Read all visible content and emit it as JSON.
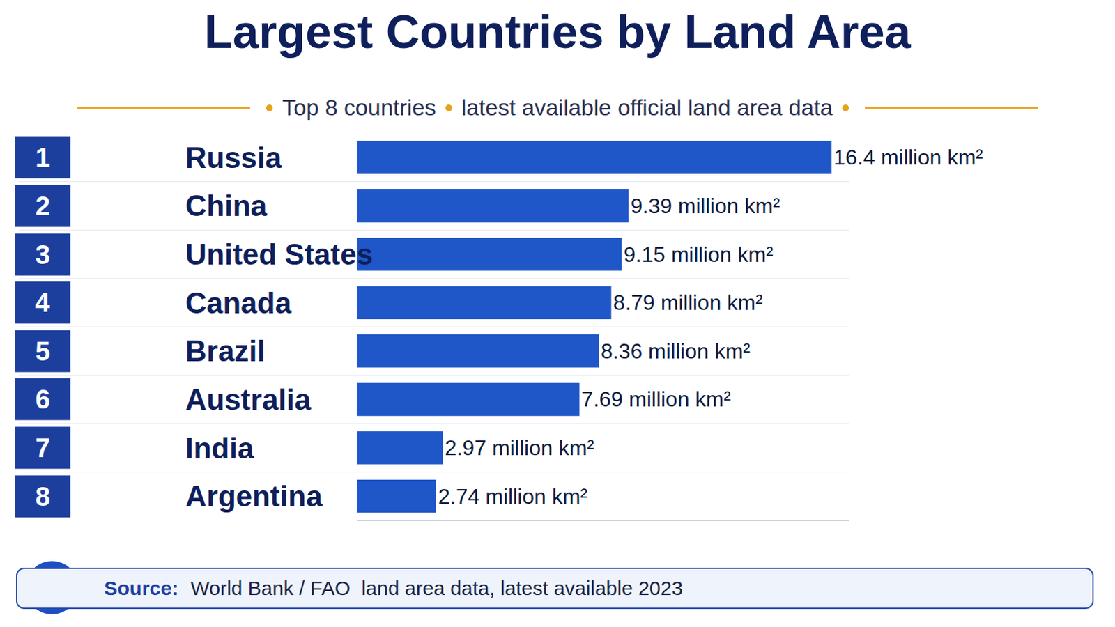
{
  "chart_data": {
    "type": "bar",
    "orientation": "horizontal",
    "title": "Largest Countries by Land Area",
    "subtitle": [
      "Top 8 countries",
      "latest available official land area data"
    ],
    "ranks": [
      1,
      2,
      3,
      4,
      5,
      6,
      7,
      8
    ],
    "categories": [
      "Russia",
      "China",
      "United States",
      "Canada",
      "Brazil",
      "Australia",
      "India",
      "Argentina"
    ],
    "values": [
      16.4,
      9.39,
      9.15,
      8.79,
      8.36,
      7.69,
      2.97,
      2.74
    ],
    "value_labels": [
      "16.4 million km²",
      "9.39 million km²",
      "9.15 million km²",
      "8.79 million km²",
      "8.36 million km²",
      "7.69 million km²",
      "2.97 million km²",
      "2.74 million km²"
    ],
    "color": "#1f56c8",
    "xlim": [
      0,
      17
    ],
    "data_labels": true,
    "tick_labels": "y",
    "grid": false,
    "source_label": "Source:",
    "source": "World Bank / FAO  land area data, latest available 2023"
  }
}
